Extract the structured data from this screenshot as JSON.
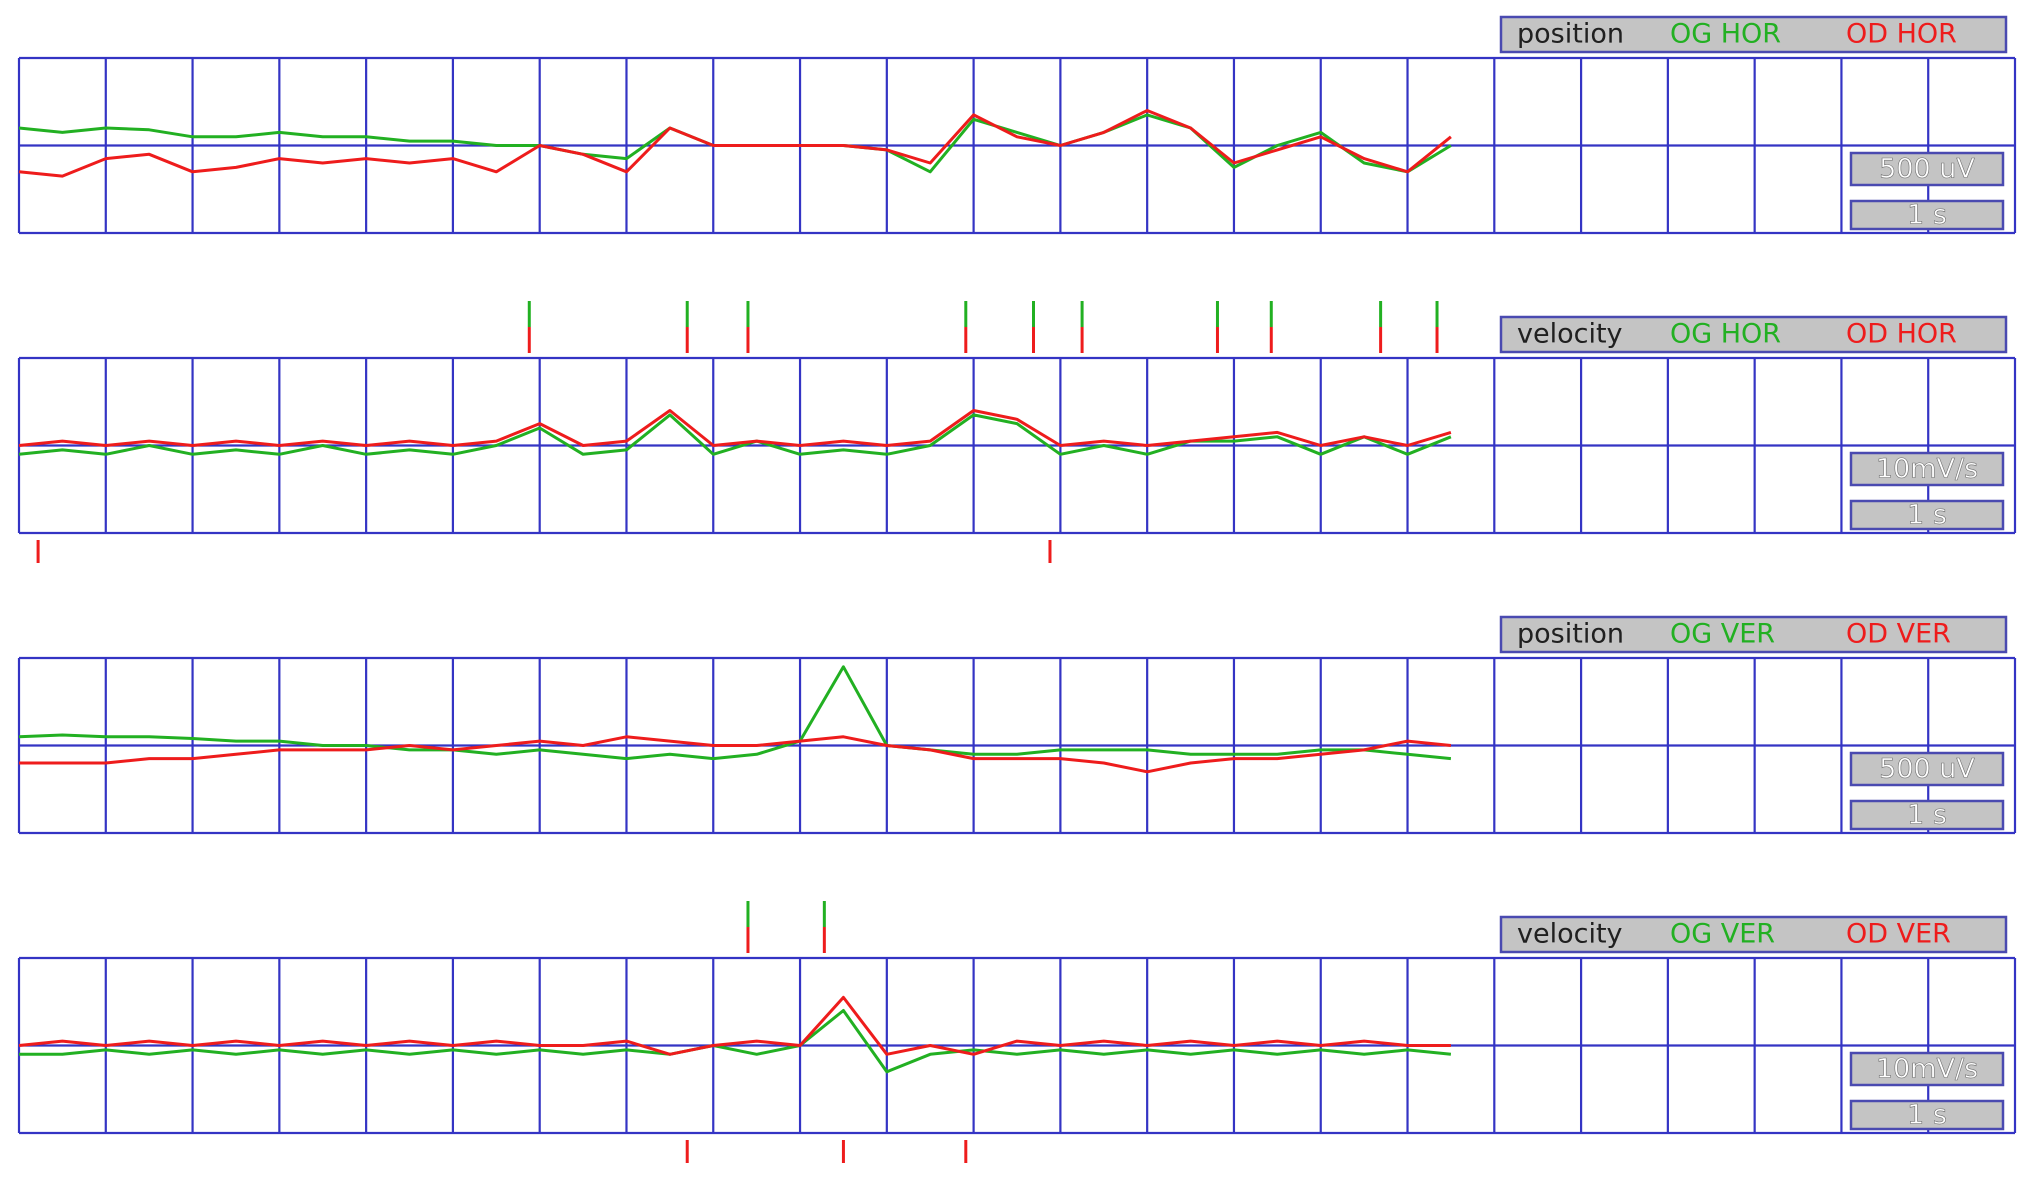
{
  "grid": {
    "columns": 23,
    "rows": 2
  },
  "trace_x": [
    0,
    0.5,
    1,
    1.5,
    2,
    2.5,
    3,
    3.5,
    4,
    4.5,
    5,
    5.5,
    6,
    6.5,
    7,
    7.5,
    8,
    8.5,
    9,
    9.5,
    10,
    10.5,
    11,
    11.5,
    12,
    12.5,
    13,
    13.5,
    14,
    14.5,
    15,
    15.5,
    16,
    16.5
  ],
  "panels": [
    {
      "mode": "position",
      "left_label": "OG HOR",
      "right_label": "OD HOR",
      "amp_scale": "500 uV",
      "time_scale": "1 s",
      "traces": [
        {
          "color": "#22b022",
          "values": [
            0.2,
            0.15,
            0.2,
            0.18,
            0.1,
            0.1,
            0.15,
            0.1,
            0.1,
            0.05,
            0.05,
            0.0,
            0.0,
            -0.1,
            -0.15,
            0.2,
            0.0,
            0.0,
            0.0,
            0.0,
            -0.05,
            -0.3,
            0.3,
            0.15,
            0.0,
            0.15,
            0.35,
            0.2,
            -0.25,
            0.0,
            0.15,
            -0.2,
            -0.3,
            0.0
          ]
        },
        {
          "color": "#ee1c1c",
          "values": [
            -0.3,
            -0.35,
            -0.15,
            -0.1,
            -0.3,
            -0.25,
            -0.15,
            -0.2,
            -0.15,
            -0.2,
            -0.15,
            -0.3,
            0.0,
            -0.1,
            -0.3,
            0.2,
            0.0,
            0.0,
            0.0,
            0.0,
            -0.05,
            -0.2,
            0.35,
            0.1,
            0.0,
            0.15,
            0.4,
            0.2,
            -0.2,
            -0.05,
            0.1,
            -0.15,
            -0.3,
            0.1
          ]
        }
      ],
      "markers_above": [],
      "markers_below": []
    },
    {
      "mode": "velocity",
      "left_label": "OG HOR",
      "right_label": "OD HOR",
      "amp_scale": "10mV/s",
      "time_scale": "1 s",
      "traces": [
        {
          "color": "#22b022",
          "values": [
            -0.1,
            -0.05,
            -0.1,
            0,
            -0.1,
            -0.05,
            -0.1,
            0,
            -0.1,
            -0.05,
            -0.1,
            0,
            0.2,
            -0.1,
            -0.05,
            0.35,
            -0.1,
            0.05,
            -0.1,
            -0.05,
            -0.1,
            0,
            0.35,
            0.25,
            -0.1,
            0,
            -0.1,
            0.05,
            0.05,
            0.1,
            -0.1,
            0.1,
            -0.1,
            0.1
          ]
        },
        {
          "color": "#ee1c1c",
          "values": [
            0,
            0.05,
            0,
            0.05,
            0,
            0.05,
            0,
            0.05,
            0,
            0.05,
            0,
            0.05,
            0.25,
            0,
            0.05,
            0.4,
            0,
            0.05,
            0,
            0.05,
            0,
            0.05,
            0.4,
            0.3,
            0,
            0.05,
            0,
            0.05,
            0.1,
            0.15,
            0,
            0.1,
            0,
            0.15
          ]
        }
      ],
      "markers_above": [
        5.88,
        7.7,
        8.4,
        10.91,
        11.69,
        12.25,
        13.81,
        14.43,
        15.69,
        16.34
      ],
      "markers_below": [
        0.22,
        11.88
      ]
    },
    {
      "mode": "position",
      "left_label": "OG VER",
      "right_label": "OD VER",
      "amp_scale": "500 uV",
      "time_scale": "1 s",
      "traces": [
        {
          "color": "#22b022",
          "values": [
            0.1,
            0.12,
            0.1,
            0.1,
            0.08,
            0.05,
            0.05,
            0.0,
            0.0,
            -0.05,
            -0.05,
            -0.1,
            -0.05,
            -0.1,
            -0.15,
            -0.1,
            -0.15,
            -0.1,
            0.05,
            0.9,
            0.0,
            -0.05,
            -0.1,
            -0.1,
            -0.05,
            -0.05,
            -0.05,
            -0.1,
            -0.1,
            -0.1,
            -0.05,
            -0.05,
            -0.1,
            -0.15
          ]
        },
        {
          "color": "#ee1c1c",
          "values": [
            -0.2,
            -0.2,
            -0.2,
            -0.15,
            -0.15,
            -0.1,
            -0.05,
            -0.05,
            -0.05,
            0,
            -0.05,
            0.0,
            0.05,
            0,
            0.1,
            0.05,
            0,
            0,
            0.05,
            0.1,
            0,
            -0.05,
            -0.15,
            -0.15,
            -0.15,
            -0.2,
            -0.3,
            -0.2,
            -0.15,
            -0.15,
            -0.1,
            -0.05,
            0.05,
            0
          ]
        }
      ],
      "markers_above": [],
      "markers_below": []
    },
    {
      "mode": "velocity",
      "left_label": "OG VER",
      "right_label": "OD VER",
      "amp_scale": "10mV/s",
      "time_scale": "1 s",
      "traces": [
        {
          "color": "#22b022",
          "values": [
            -0.1,
            -0.1,
            -0.05,
            -0.1,
            -0.05,
            -0.1,
            -0.05,
            -0.1,
            -0.05,
            -0.1,
            -0.05,
            -0.1,
            -0.05,
            -0.1,
            -0.05,
            -0.1,
            0,
            -0.1,
            0.0,
            0.4,
            -0.3,
            -0.1,
            -0.05,
            -0.1,
            -0.05,
            -0.1,
            -0.05,
            -0.1,
            -0.05,
            -0.1,
            -0.05,
            -0.1,
            -0.05,
            -0.1
          ]
        },
        {
          "color": "#ee1c1c",
          "values": [
            0,
            0.05,
            0,
            0.05,
            0,
            0.05,
            0,
            0.05,
            0,
            0.05,
            0,
            0.05,
            0,
            0,
            0.05,
            -0.1,
            0,
            0.05,
            0,
            0.55,
            -0.1,
            0,
            -0.1,
            0.05,
            0,
            0.05,
            0,
            0.05,
            0,
            0.05,
            0,
            0.05,
            0,
            0
          ]
        }
      ],
      "markers_above": [
        8.4,
        9.28
      ],
      "markers_below": [
        7.7,
        9.5,
        10.91
      ]
    }
  ]
}
